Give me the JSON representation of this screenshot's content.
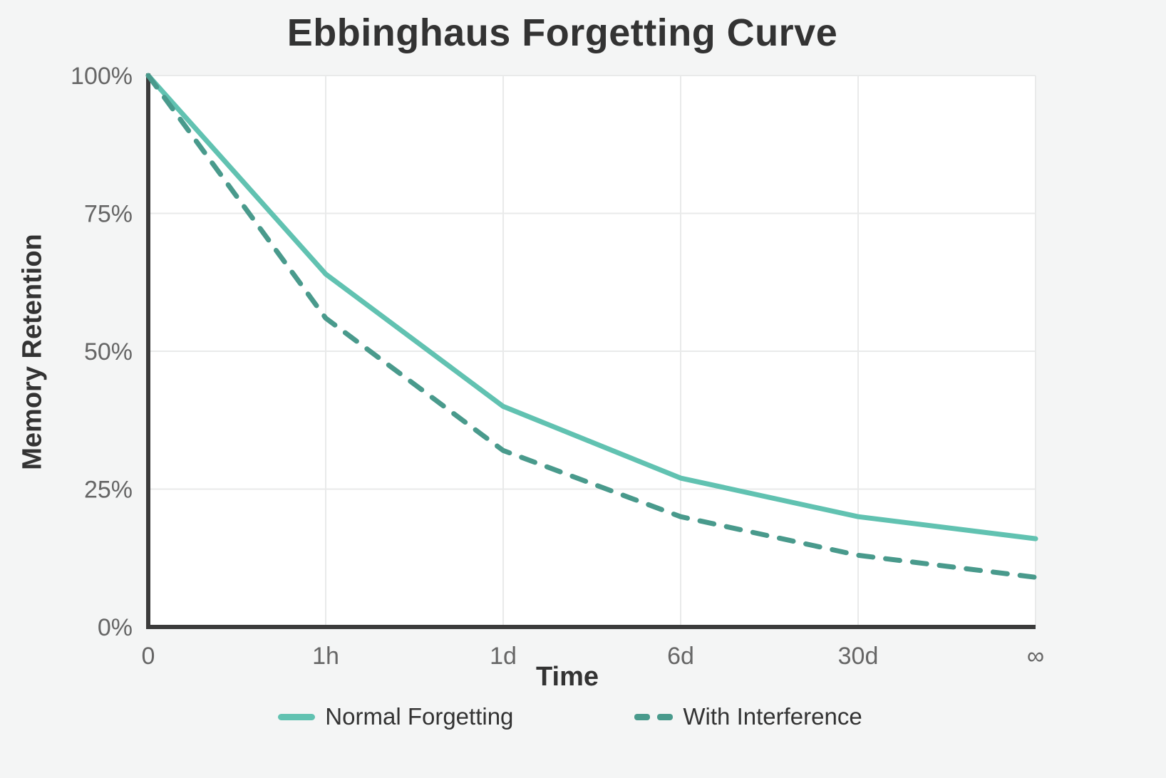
{
  "chart_data": {
    "type": "line",
    "title": "Ebbinghaus Forgetting Curve",
    "xlabel": "Time",
    "ylabel": "Memory Retention",
    "categories": [
      "0",
      "1h",
      "1d",
      "6d",
      "30d",
      "∞"
    ],
    "series": [
      {
        "name": "Normal Forgetting",
        "line_style": "solid",
        "color": "#61c2b1",
        "values": [
          100,
          64,
          40,
          27,
          20,
          16
        ]
      },
      {
        "name": "With Interference",
        "line_style": "dashed",
        "color": "#499a8c",
        "values": [
          100,
          56,
          32,
          20,
          13,
          9
        ]
      }
    ],
    "y_tick_labels": [
      "0%",
      "25%",
      "50%",
      "75%",
      "100%"
    ],
    "y_tick_values": [
      0,
      25,
      50,
      75,
      100
    ],
    "ylim": [
      0,
      100
    ],
    "grid": true,
    "legend_position": "bottom",
    "colors": {
      "page_bg": "#f4f5f5",
      "plot_bg": "#ffffff",
      "axis_line": "#3b3b3b",
      "gridline": "#e9eaea",
      "title_text": "#333333",
      "tick_text": "#666666"
    }
  }
}
